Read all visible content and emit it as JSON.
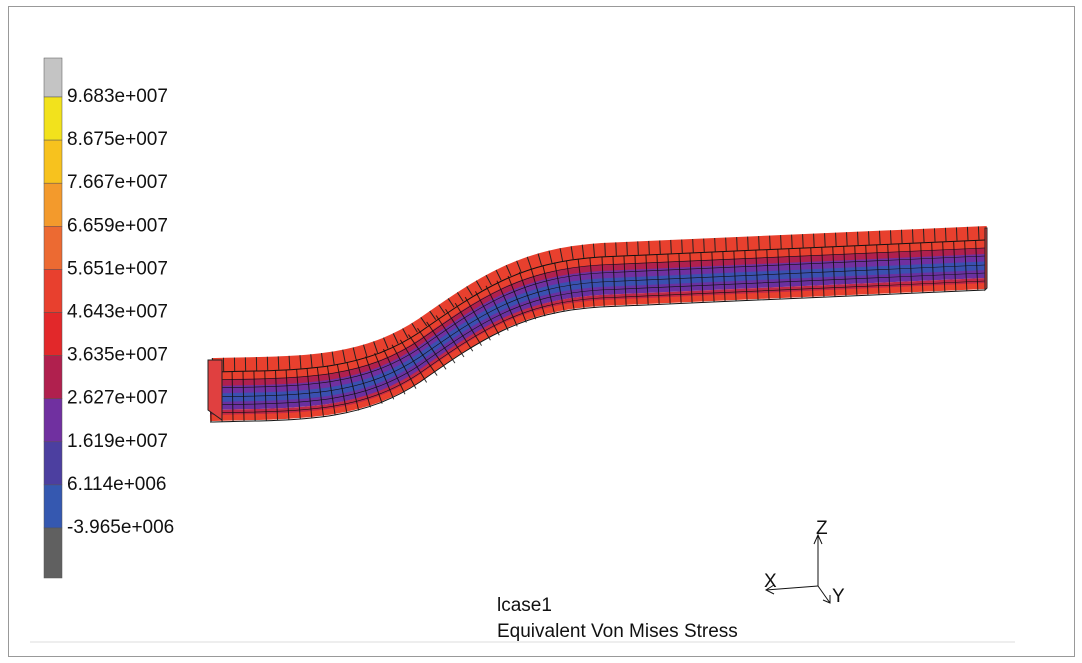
{
  "legend": {
    "labels": [
      "9.683e+007",
      "8.675e+007",
      "7.667e+007",
      "6.659e+007",
      "5.651e+007",
      "4.643e+007",
      "3.635e+007",
      "2.627e+007",
      "1.619e+007",
      "6.114e+006",
      "-3.965e+006"
    ],
    "colors": [
      "#c4c4c4",
      "#f2e21c",
      "#f7c21e",
      "#f39a2c",
      "#ec6a32",
      "#e8402e",
      "#e2282a",
      "#b0204e",
      "#7030a0",
      "#4c3fa0",
      "#3558b0",
      "#606060"
    ]
  },
  "load_case": "lcase1",
  "result_type": "Equivalent Von Mises Stress",
  "axes": {
    "x": "X",
    "y": "Y",
    "z": "Z"
  }
}
